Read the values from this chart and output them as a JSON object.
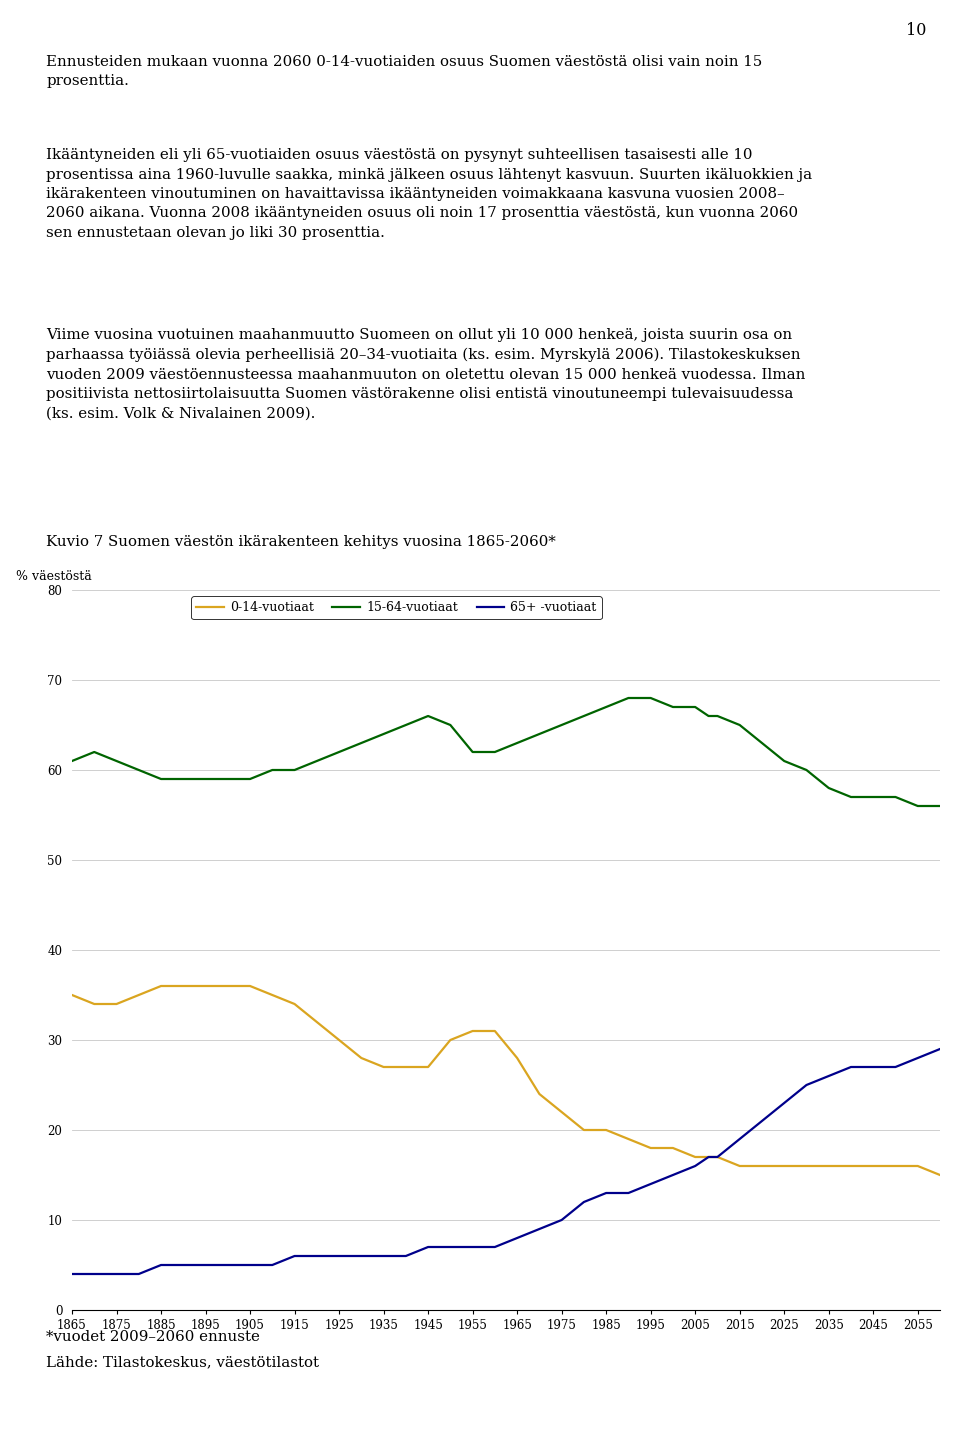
{
  "page_number": "10",
  "chart": {
    "ylabel": "% väestöstä",
    "ylim": [
      0,
      80
    ],
    "yticks": [
      0,
      10,
      20,
      30,
      40,
      50,
      60,
      70,
      80
    ],
    "xlim": [
      1865,
      2060
    ],
    "xticks": [
      1865,
      1875,
      1885,
      1895,
      1905,
      1915,
      1925,
      1935,
      1945,
      1955,
      1965,
      1975,
      1985,
      1995,
      2005,
      2015,
      2025,
      2035,
      2045,
      2055
    ],
    "legend_labels": [
      "0-14-vuotiaat",
      "15-64-vuotiaat",
      "65+ -vuotiaat"
    ],
    "legend_colors": [
      "#DAA520",
      "#006400",
      "#00008B"
    ],
    "series": {
      "ages_0_14": {
        "color": "#DAA520",
        "label": "0-14-vuotiaat",
        "years": [
          1865,
          1870,
          1875,
          1880,
          1885,
          1890,
          1895,
          1900,
          1905,
          1910,
          1915,
          1920,
          1925,
          1930,
          1935,
          1940,
          1945,
          1950,
          1955,
          1960,
          1965,
          1970,
          1975,
          1980,
          1985,
          1990,
          1995,
          2000,
          2005,
          2008,
          2010,
          2015,
          2020,
          2025,
          2030,
          2035,
          2040,
          2045,
          2050,
          2055,
          2060
        ],
        "values": [
          35,
          34,
          34,
          35,
          36,
          36,
          36,
          36,
          36,
          35,
          34,
          32,
          30,
          28,
          27,
          27,
          27,
          30,
          31,
          31,
          28,
          24,
          22,
          20,
          20,
          19,
          18,
          18,
          17,
          17,
          17,
          16,
          16,
          16,
          16,
          16,
          16,
          16,
          16,
          16,
          15
        ]
      },
      "ages_15_64": {
        "color": "#006400",
        "label": "15-64-vuotiaat",
        "years": [
          1865,
          1870,
          1875,
          1880,
          1885,
          1890,
          1895,
          1900,
          1905,
          1910,
          1915,
          1920,
          1925,
          1930,
          1935,
          1940,
          1945,
          1950,
          1955,
          1960,
          1965,
          1970,
          1975,
          1980,
          1985,
          1990,
          1995,
          2000,
          2005,
          2008,
          2010,
          2015,
          2020,
          2025,
          2030,
          2035,
          2040,
          2045,
          2050,
          2055,
          2060
        ],
        "values": [
          61,
          62,
          61,
          60,
          59,
          59,
          59,
          59,
          59,
          60,
          60,
          61,
          62,
          63,
          64,
          65,
          66,
          65,
          62,
          62,
          63,
          64,
          65,
          66,
          67,
          68,
          68,
          67,
          67,
          66,
          66,
          65,
          63,
          61,
          60,
          58,
          57,
          57,
          57,
          56,
          56
        ]
      },
      "ages_65_plus": {
        "color": "#00008B",
        "label": "65+ -vuotiaat",
        "years": [
          1865,
          1870,
          1875,
          1880,
          1885,
          1890,
          1895,
          1900,
          1905,
          1910,
          1915,
          1920,
          1925,
          1930,
          1935,
          1940,
          1945,
          1950,
          1955,
          1960,
          1965,
          1970,
          1975,
          1980,
          1985,
          1990,
          1995,
          2000,
          2005,
          2008,
          2010,
          2015,
          2020,
          2025,
          2030,
          2035,
          2040,
          2045,
          2050,
          2055,
          2060
        ],
        "values": [
          4,
          4,
          4,
          4,
          5,
          5,
          5,
          5,
          5,
          5,
          6,
          6,
          6,
          6,
          6,
          6,
          7,
          7,
          7,
          7,
          8,
          9,
          10,
          12,
          13,
          13,
          14,
          15,
          16,
          17,
          17,
          19,
          21,
          23,
          25,
          26,
          27,
          27,
          27,
          28,
          29
        ]
      }
    }
  },
  "background_color": "#ffffff",
  "text_color": "#000000",
  "para1": "Ennusteiden mukaan vuonna 2060 0-14-vuotiaiden osuus Suomen väestöstä olisi vain noin 15\nprosenttia.",
  "para2_line1": "Ikääntyneiden eli yli 65-vuotiaiden osuus väestöstä on pysynyt suhteellisen tasaisesti alle 10",
  "para2_line2": "prosentissa aina 1960-luvulle saakka, minkä jälkeen osuus lähtenyt kasvuun. Suurten ikäluokkien ja",
  "para2_line3": "ikärakenteen vinoutuminen on havaittavissa ikääntyneiden voimakkaana kasvuna vuosien 2008–",
  "para2_line4": "2060 aikana. Vuonna 2008 ikääntyneiden osuus oli noin 17 prosenttia väestöstä, kun vuonna 2060",
  "para2_line5": "sen ennustetaan olevan jo liki 30 prosenttia.",
  "para3_line1": "Viime vuosina vuotuinen maahanmuutto Suomeen on ollut yli 10 000 henkeä, joista suurin osa on",
  "para3_line2": "parhaassa työiässä olevia perheellisiä 20–34-vuotiaita (ks. esim. Myrskylä 2006). Tilastokeskuksen",
  "para3_line3": "vuoden 2009 väestöennusteessa maahanmuuton on oletettu olevan 15 000 henkeä vuodessa. Ilman",
  "para3_line4": "positiivista nettosiirtolaisuutta Suomen västörakenne olisi entistä vinoutuneempi tulevaisuudessa",
  "para3_line5": "(ks. esim. Volk & Nivalainen 2009).",
  "chart_title": "Kuvio 7 Suomen väestön ikärakenteen kehitys vuosina 1865-2060*",
  "footnote1": "*vuodet 2009–2060 ennuste",
  "footnote2": "Lähde: Tilastokeskus, väestötilastot"
}
